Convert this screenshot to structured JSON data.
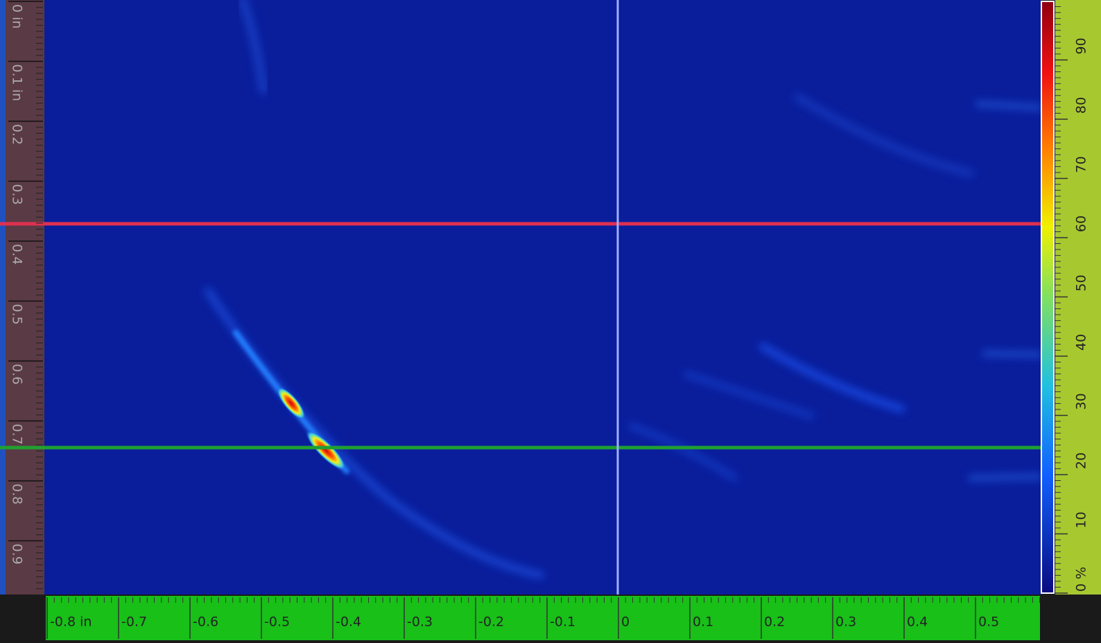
{
  "left_ruler": {
    "labels": [
      "0 in",
      "0.1 in",
      "0.2",
      "0.3",
      "0.4",
      "0.5",
      "0.6",
      "0.7",
      "0.8",
      "0.9"
    ]
  },
  "bottom_ruler": {
    "labels": [
      "-0.8 in",
      "-0.7",
      "-0.6",
      "-0.5",
      "-0.4",
      "-0.3",
      "-0.2",
      "-0.1",
      "0",
      "0.1",
      "0.2",
      "0.3",
      "0.4",
      "0.5"
    ]
  },
  "color_scale": {
    "labels": [
      "0 %",
      "10",
      "20",
      "30",
      "40",
      "50",
      "60",
      "70",
      "80",
      "90"
    ]
  }
}
